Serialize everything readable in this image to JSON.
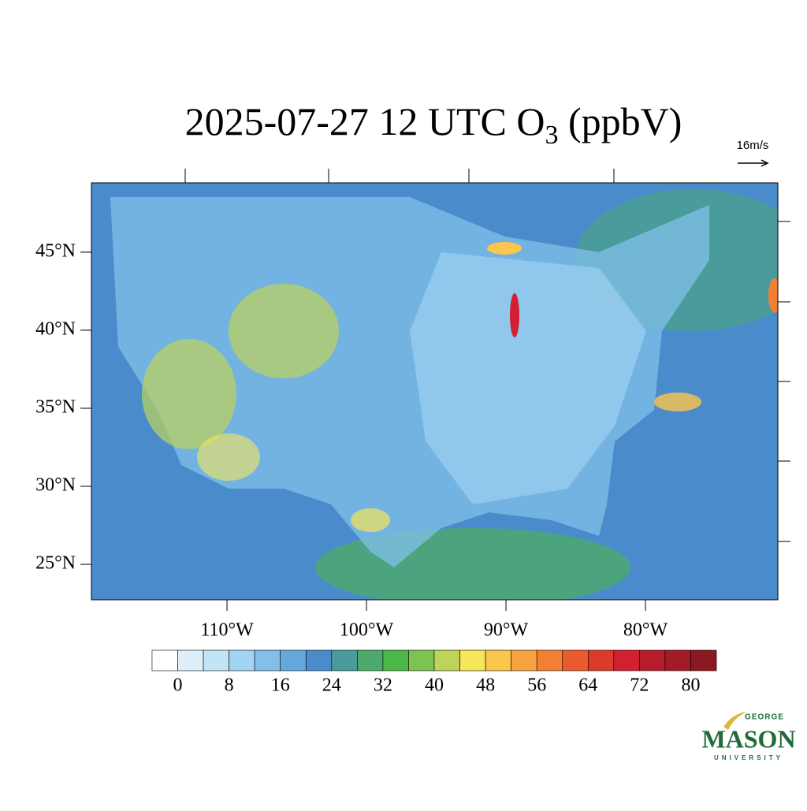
{
  "title": {
    "main": "2025-07-27 12 UTC O",
    "sub": "3",
    "unit": " (ppbV)"
  },
  "wind_reference": "16m/s",
  "map": {
    "lat_range": [
      22.73,
      49.44
    ],
    "lon_range": [
      -119.72,
      -70.51
    ],
    "latitude_ticks": [
      {
        "value": 45,
        "label": "45°N"
      },
      {
        "value": 40,
        "label": "40°N"
      },
      {
        "value": 35,
        "label": "35°N"
      },
      {
        "value": 30,
        "label": "30°N"
      },
      {
        "value": 25,
        "label": "25°N"
      }
    ],
    "longitude_ticks": [
      {
        "value": -110,
        "label": "110°W"
      },
      {
        "value": -100,
        "label": "100°W"
      },
      {
        "value": -90,
        "label": "90°W"
      },
      {
        "value": -80,
        "label": "80°W"
      }
    ]
  },
  "colorbar": {
    "levels": [
      0,
      4,
      8,
      12,
      16,
      20,
      24,
      28,
      32,
      36,
      40,
      44,
      48,
      52,
      56,
      60,
      64,
      68,
      72,
      76,
      80
    ],
    "ticks": [
      0,
      8,
      16,
      24,
      32,
      40,
      48,
      56,
      64,
      72,
      80
    ],
    "colors": [
      "#ffffff",
      "#deeff9",
      "#c3e3f6",
      "#a3d4f3",
      "#82c0ea",
      "#65a8dc",
      "#4a8ccb",
      "#4a9c9c",
      "#4caa6c",
      "#4cb84a",
      "#7cc350",
      "#bdd35a",
      "#f7e65a",
      "#fbc64c",
      "#f9a33e",
      "#f47f32",
      "#ea5a2c",
      "#dc3b2c",
      "#d22030",
      "#b81c2c",
      "#a31a28",
      "#8c1820"
    ]
  },
  "logo": {
    "top": "GEORGE",
    "name": "MASON",
    "bottom": "UNIVERSITY"
  }
}
